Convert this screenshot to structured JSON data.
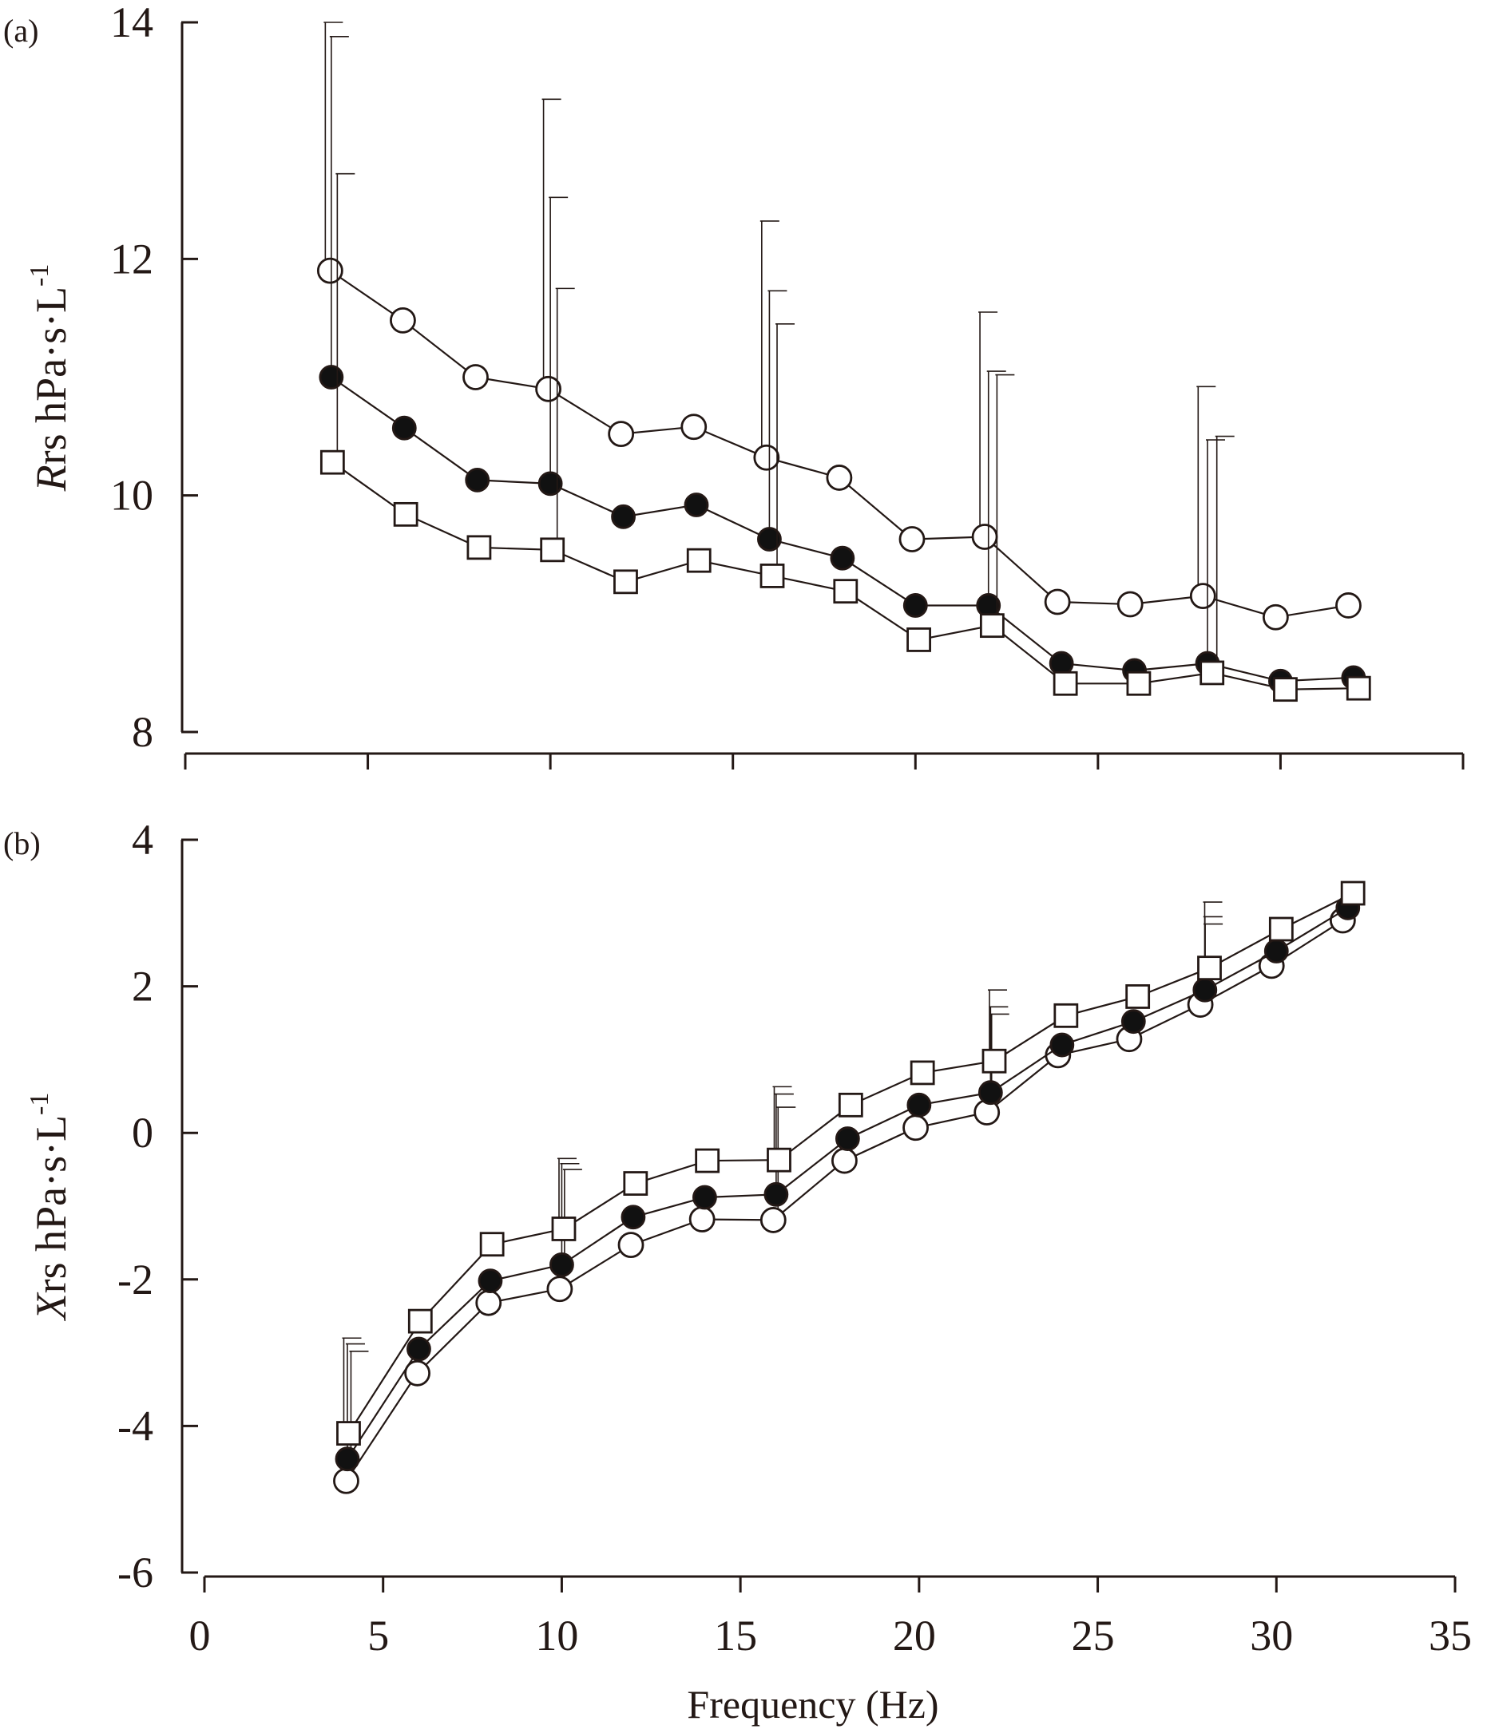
{
  "chart_data": [
    {
      "type": "line",
      "panel_label": "(a)",
      "ylabel": {
        "italic": "R",
        "rest": "rs hPa·s·L",
        "sup": "-1"
      },
      "xlabel": "",
      "xlim": [
        0,
        35
      ],
      "ylim": [
        8,
        14
      ],
      "xticks": [
        0,
        5,
        10,
        15,
        20,
        25,
        30,
        35
      ],
      "show_xtick_labels": false,
      "yticks": [
        8,
        10,
        12,
        14
      ],
      "ytick_labels": [
        "8",
        "10",
        "12",
        "14"
      ],
      "grid": false,
      "series": [
        {
          "marker": "open-circle",
          "x": [
            4.0,
            6.0,
            8.0,
            10.0,
            12.0,
            14.0,
            16.0,
            18.0,
            20.0,
            22.0,
            24.0,
            26.0,
            28.0,
            30.0,
            32.0
          ],
          "y": [
            11.9,
            11.48,
            11.0,
            10.9,
            10.52,
            10.58,
            10.32,
            10.15,
            9.63,
            9.65,
            9.1,
            9.08,
            9.15,
            8.97,
            9.07
          ],
          "err_x": [
            4.0,
            10.0,
            16.0,
            22.0,
            28.0
          ],
          "err_top": [
            14.0,
            13.35,
            12.32,
            11.55,
            10.92
          ]
        },
        {
          "marker": "filled-circle",
          "x": [
            4.0,
            6.0,
            8.0,
            10.0,
            12.0,
            14.0,
            16.0,
            18.0,
            20.0,
            22.0,
            24.0,
            26.0,
            28.0,
            30.0,
            32.0
          ],
          "y": [
            11.0,
            10.57,
            10.13,
            10.1,
            9.82,
            9.92,
            9.63,
            9.47,
            9.07,
            9.07,
            8.58,
            8.52,
            8.58,
            8.43,
            8.46
          ],
          "err_x": [
            4.0,
            10.0,
            16.0,
            22.0,
            28.0
          ],
          "err_top": [
            13.88,
            12.52,
            11.73,
            11.05,
            10.47
          ]
        },
        {
          "marker": "open-square",
          "x": [
            4.0,
            6.0,
            8.0,
            10.0,
            12.0,
            14.0,
            16.0,
            18.0,
            20.0,
            22.0,
            24.0,
            26.0,
            28.0,
            30.0,
            32.0
          ],
          "y": [
            10.28,
            9.84,
            9.56,
            9.54,
            9.27,
            9.45,
            9.32,
            9.19,
            8.78,
            8.9,
            8.41,
            8.41,
            8.5,
            8.36,
            8.37
          ],
          "err_x": [
            4.0,
            10.0,
            16.0,
            22.0,
            28.0
          ],
          "err_top": [
            12.72,
            11.75,
            11.45,
            11.02,
            10.5
          ]
        }
      ]
    },
    {
      "type": "line",
      "panel_label": "(b)",
      "ylabel": {
        "italic": "X",
        "rest": "rs hPa·s·L",
        "sup": "-1"
      },
      "xlabel": "Frequency (Hz)",
      "xlim": [
        0,
        35
      ],
      "ylim": [
        -6,
        4
      ],
      "xticks": [
        0,
        5,
        10,
        15,
        20,
        25,
        30,
        35
      ],
      "xtick_labels": [
        "0",
        "5",
        "10",
        "15",
        "20",
        "25",
        "30",
        "35"
      ],
      "show_xtick_labels": true,
      "yticks": [
        -6,
        -4,
        -2,
        0,
        2,
        4
      ],
      "ytick_labels": [
        "-6",
        "-4",
        "-2",
        "0",
        "2",
        "4"
      ],
      "grid": false,
      "series": [
        {
          "marker": "open-circle",
          "x": [
            4.0,
            6.0,
            8.0,
            10.0,
            12.0,
            14.0,
            16.0,
            18.0,
            20.0,
            22.0,
            24.0,
            26.0,
            28.0,
            30.0,
            32.0
          ],
          "y": [
            -4.75,
            -3.28,
            -2.32,
            -2.13,
            -1.53,
            -1.18,
            -1.19,
            -0.38,
            0.07,
            0.28,
            1.06,
            1.28,
            1.75,
            2.28,
            2.9
          ],
          "err_x": [
            4.0,
            10.0,
            16.0,
            22.0,
            28.0
          ],
          "err_top": [
            -2.98,
            -0.5,
            0.35,
            1.62,
            2.85
          ]
        },
        {
          "marker": "filled-circle",
          "x": [
            4.0,
            6.0,
            8.0,
            10.0,
            12.0,
            14.0,
            16.0,
            18.0,
            20.0,
            22.0,
            24.0,
            26.0,
            28.0,
            30.0,
            32.0
          ],
          "y": [
            -4.45,
            -2.95,
            -2.02,
            -1.8,
            -1.15,
            -0.88,
            -0.84,
            -0.08,
            0.38,
            0.55,
            1.2,
            1.52,
            1.95,
            2.48,
            3.07
          ],
          "err_x": [
            4.0,
            10.0,
            16.0,
            22.0,
            28.0
          ],
          "err_top": [
            -2.88,
            -0.42,
            0.53,
            1.72,
            2.95
          ]
        },
        {
          "marker": "open-square",
          "x": [
            4.0,
            6.0,
            8.0,
            10.0,
            12.0,
            14.0,
            16.0,
            18.0,
            20.0,
            22.0,
            24.0,
            26.0,
            28.0,
            30.0,
            32.0
          ],
          "y": [
            -4.1,
            -2.57,
            -1.52,
            -1.31,
            -0.69,
            -0.38,
            -0.37,
            0.38,
            0.82,
            0.98,
            1.6,
            1.86,
            2.25,
            2.78,
            3.27
          ],
          "err_x": [
            4.0,
            10.0,
            16.0,
            22.0,
            28.0
          ],
          "err_top": [
            -2.8,
            -0.35,
            0.63,
            1.95,
            3.15
          ]
        }
      ]
    }
  ]
}
